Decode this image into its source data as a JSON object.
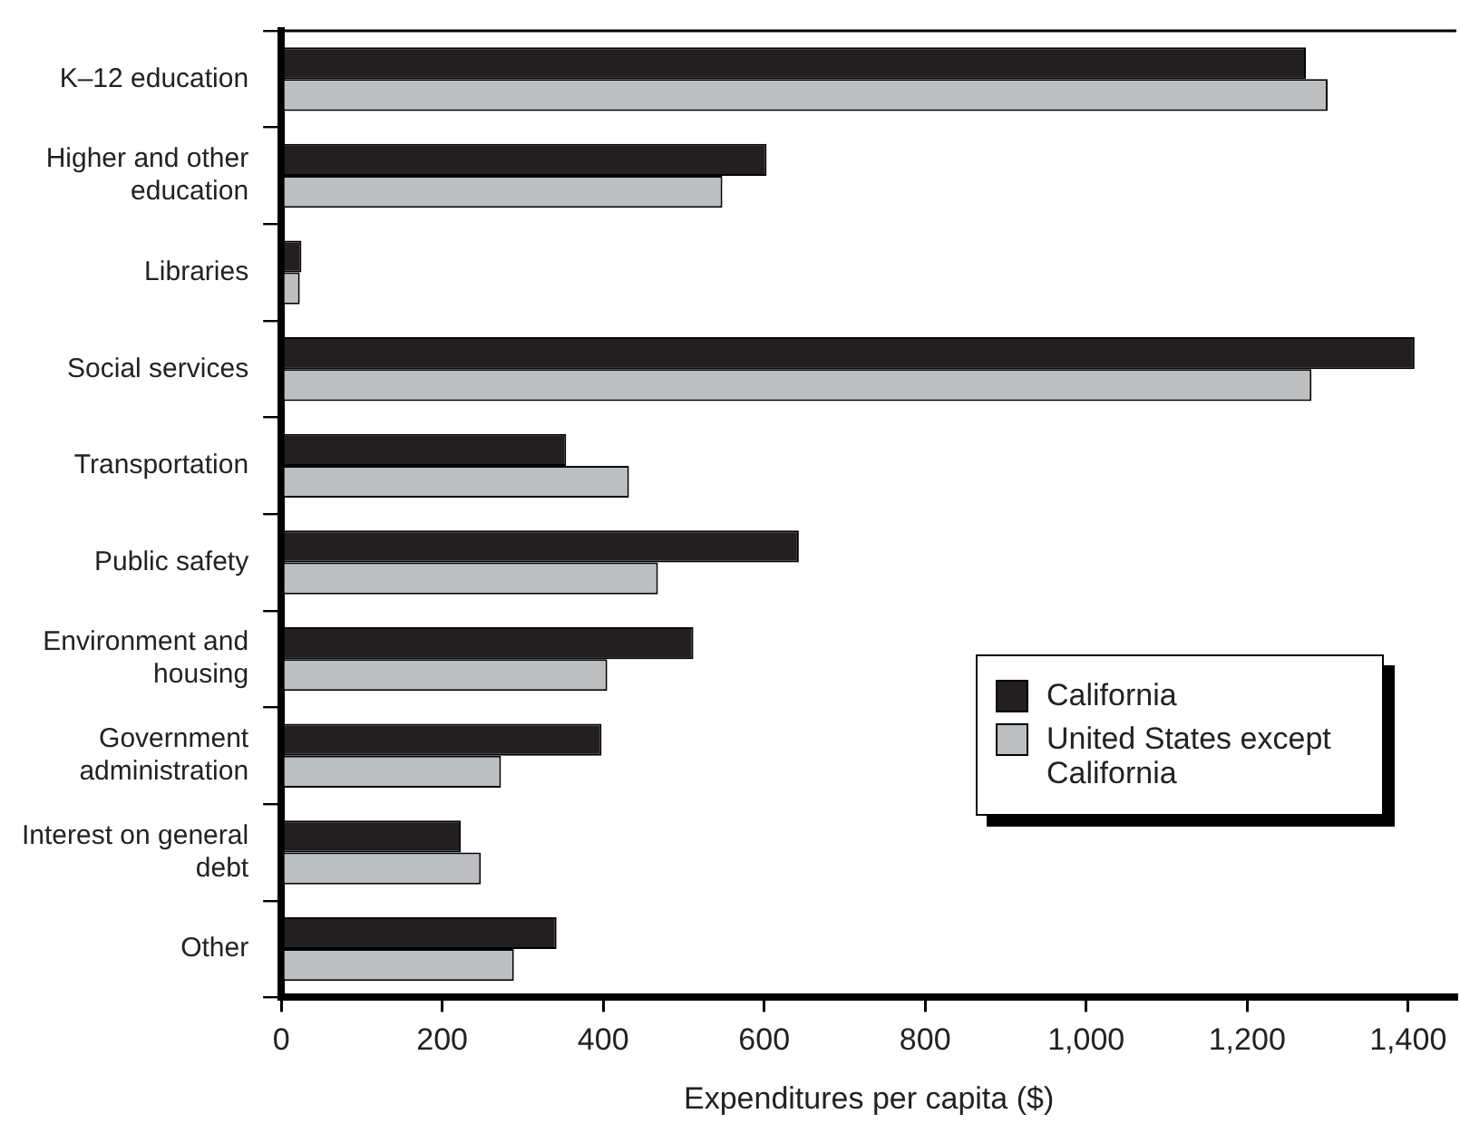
{
  "chart_data": {
    "type": "bar",
    "orientation": "horizontal",
    "xlabel": "Expenditures per capita ($)",
    "categories": [
      "K–12 education",
      "Higher and other education",
      "Libraries",
      "Social services",
      "Transportation",
      "Public safety",
      "Environment and housing",
      "Government administration",
      "Interest on general debt",
      "Other"
    ],
    "series": [
      {
        "name": "California",
        "color": "#231f20",
        "values": [
          1273,
          603,
          25,
          1408,
          354,
          643,
          512,
          398,
          223,
          342
        ]
      },
      {
        "name": "United States except California",
        "color": "#bcbec0",
        "values": [
          1300,
          548,
          23,
          1280,
          432,
          468,
          405,
          273,
          248,
          289
        ]
      }
    ],
    "xlim": [
      0,
      1460
    ],
    "xticks": [
      0,
      200,
      400,
      600,
      {
        "value": 800,
        "label": "800"
      },
      {
        "value": 1000,
        "label": "1,000"
      },
      {
        "value": 1200,
        "label": "1,200"
      },
      {
        "value": 1400,
        "label": "1,400"
      }
    ],
    "grid": false,
    "legend": "bottom right"
  }
}
